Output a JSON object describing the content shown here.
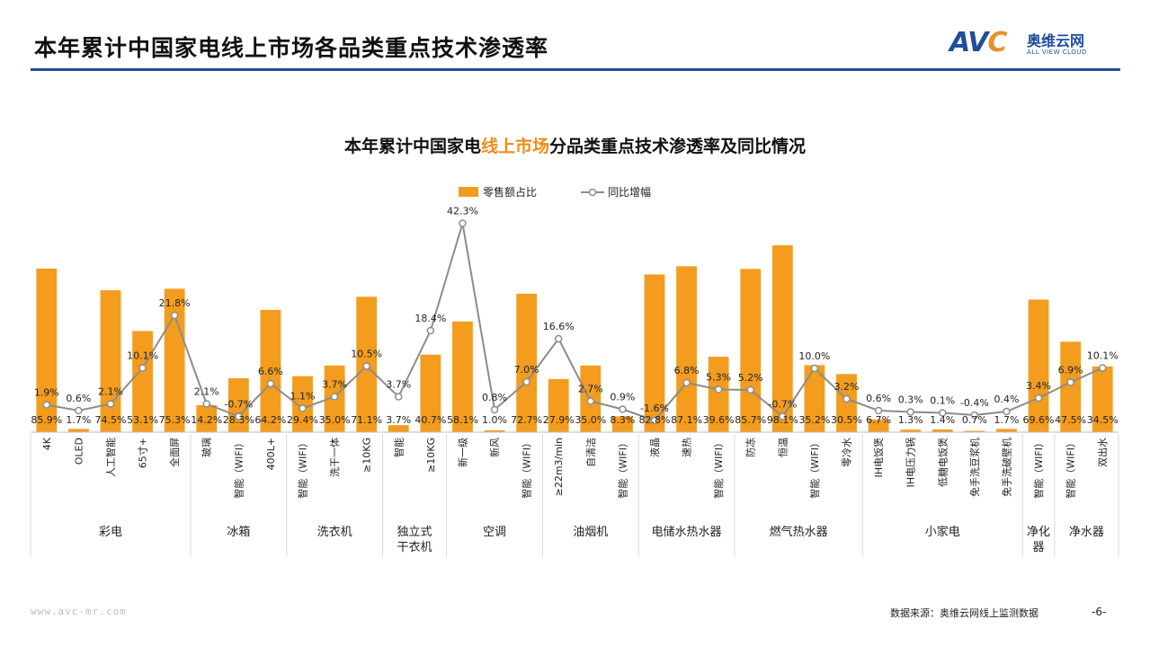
{
  "header": {
    "title": "本年累计中国家电线上市场各品类重点技术渗透率",
    "logo_mark": "AVC",
    "logo_cn": "奥维云网",
    "logo_en": "ALL VIEW CLOUD",
    "accent": "#1f4e9b"
  },
  "footer": {
    "url": "www.avc-mr.com",
    "source": "数据来源：奥维云网线上监测数据",
    "page": "-6-"
  },
  "chart_data": {
    "type": "bar",
    "title_pre": "本年累计中国家电",
    "title_hl": "线上市场",
    "title_post": "分品类重点技术渗透率及同比情况",
    "legend": {
      "bar": "零售额占比",
      "line": "同比增幅",
      "position": "top"
    },
    "colors": {
      "bar": "#f39c1e",
      "line": "#8c8c8c",
      "marker_fill": "#ffffff"
    },
    "categories": [
      "4K",
      "OLED",
      "人工智能",
      "65寸+",
      "全面屏",
      "玻璃",
      "智能（WIFI）",
      "400L+",
      "智能（WIFI）",
      "洗干一体",
      "≥10KG",
      "智能",
      "≥10KG",
      "新一级",
      "新风",
      "智能（WIFI）",
      "≥22m3/min",
      "自清洁",
      "智能（WIFI）",
      "液晶",
      "速热",
      "智能（WIFI）",
      "防冻",
      "恒温",
      "智能（WIFI）",
      "零冷水",
      "IH电饭煲",
      "IH电压力锅",
      "低糖电饭煲",
      "免手洗豆浆机",
      "免手洗破壁机",
      "智能（WIFI）",
      "智能（WIFI）",
      "双出水"
    ],
    "series": [
      {
        "name": "零售额占比",
        "unit": "%",
        "values": [
          85.9,
          1.7,
          74.5,
          53.1,
          75.3,
          14.2,
          28.3,
          64.2,
          29.4,
          35.0,
          71.1,
          3.7,
          40.7,
          58.1,
          1.0,
          72.7,
          27.9,
          35.0,
          8.3,
          82.8,
          87.1,
          39.6,
          85.7,
          98.1,
          35.2,
          30.5,
          6.7,
          1.3,
          1.4,
          0.7,
          1.7,
          69.6,
          47.5,
          34.5
        ]
      },
      {
        "name": "同比增幅",
        "unit": "%",
        "values": [
          1.9,
          0.6,
          2.1,
          10.1,
          21.8,
          2.1,
          -0.7,
          6.6,
          1.1,
          3.7,
          10.5,
          3.7,
          18.4,
          42.3,
          0.8,
          7.0,
          16.6,
          2.7,
          0.9,
          -1.6,
          6.8,
          5.3,
          5.2,
          -0.7,
          10.0,
          3.2,
          0.6,
          0.3,
          0.1,
          -0.4,
          0.4,
          3.4,
          6.9,
          10.1
        ]
      }
    ],
    "bar_labels": [
      "85.9%",
      "1.7%",
      "74.5%",
      "53.1%",
      "75.3%",
      "14.2%",
      "28.3%",
      "64.2%",
      "29.4%",
      "35.0%",
      "71.1%",
      "3.7%",
      "40.7%",
      "58.1%",
      "1.0%",
      "72.7%",
      "27.9%",
      "35.0%",
      "8.3%",
      "82.8%",
      "87.1%",
      "39.6%",
      "85.7%",
      "98.1%",
      "35.2%",
      "30.5%",
      "6.7%",
      "1.3%",
      "1.4%",
      "0.7%",
      "1.7%",
      "69.6%",
      "47.5%",
      "34.5%"
    ],
    "line_labels": [
      "1.9%",
      "0.6%",
      "2.1%",
      "10.1%",
      "21.8%",
      "2.1%",
      "-0.7%",
      "6.6%",
      "1.1%",
      "3.7%",
      "10.5%",
      "3.7%",
      "18.4%",
      "42.3%",
      "0.8%",
      "7.0%",
      "16.6%",
      "2.7%",
      "0.9%",
      "-1.6%",
      "6.8%",
      "5.3%",
      "5.2%",
      "-0.7%",
      "10.0%",
      "3.2%",
      "0.6%",
      "0.3%",
      "0.1%",
      "-0.4%",
      "0.4%",
      "3.4%",
      "6.9%",
      "10.1%"
    ],
    "groups": [
      {
        "name": "彩电",
        "count": 5
      },
      {
        "name": "冰箱",
        "count": 3
      },
      {
        "name": "洗衣机",
        "count": 3
      },
      {
        "name": "独立式\n干衣机",
        "count": 2
      },
      {
        "name": "空调",
        "count": 3
      },
      {
        "name": "油烟机",
        "count": 3
      },
      {
        "name": "电储水热水器",
        "count": 3
      },
      {
        "name": "燃气热水器",
        "count": 4
      },
      {
        "name": "小家电",
        "count": 5
      },
      {
        "name": "净化\n器",
        "count": 1
      },
      {
        "name": "净水器",
        "count": 2
      }
    ]
  }
}
